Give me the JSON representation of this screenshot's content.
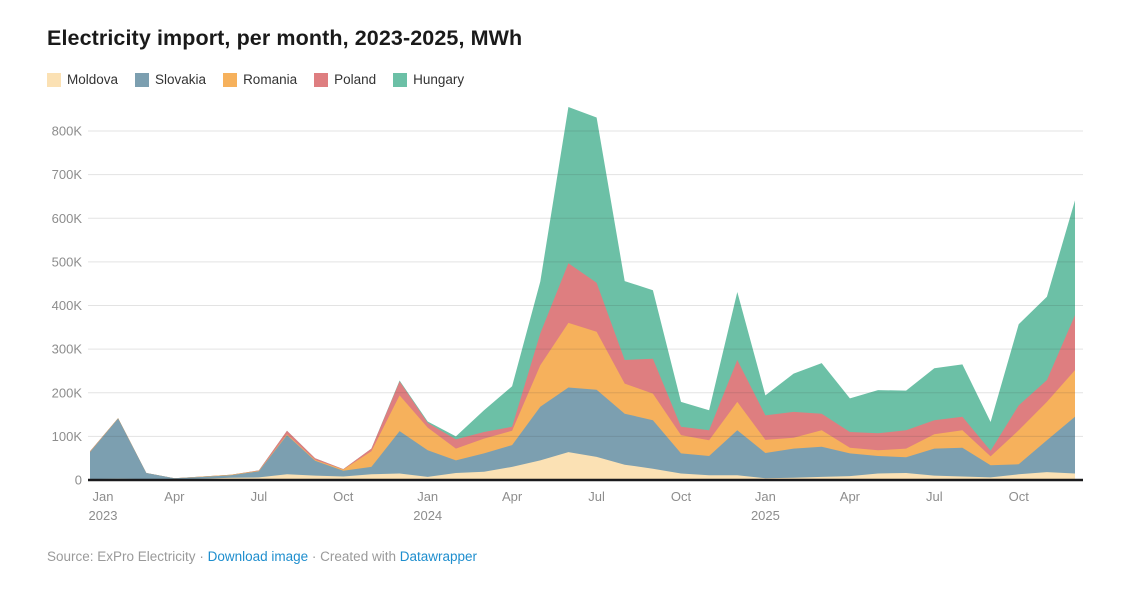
{
  "title": "Electricity import, per month, 2023-2025, MWh",
  "footer": {
    "source_prefix": "Source: ExPro Electricity",
    "separator": "·",
    "download_link": "Download image",
    "created_with": "Created with",
    "tool_link": "Datawrapper"
  },
  "chart_data": {
    "type": "area",
    "stacked": true,
    "unit": "MWh",
    "grid": true,
    "legend_position": "top-left",
    "ylim": [
      0,
      800000
    ],
    "months": [
      "Jan 2023",
      "Feb 2023",
      "Mar 2023",
      "Apr 2023",
      "May 2023",
      "Jun 2023",
      "Jul 2023",
      "Aug 2023",
      "Sep 2023",
      "Oct 2023",
      "Nov 2023",
      "Dec 2023",
      "Jan 2024",
      "Feb 2024",
      "Mar 2024",
      "Apr 2024",
      "May 2024",
      "Jun 2024",
      "Jul 2024",
      "Aug 2024",
      "Sep 2024",
      "Oct 2024",
      "Nov 2024",
      "Dec 2024",
      "Jan 2025",
      "Feb 2025",
      "Mar 2025",
      "Apr 2025",
      "May 2025",
      "Jun 2025",
      "Jul 2025",
      "Aug 2025",
      "Sep 2025",
      "Oct 2025",
      "Nov 2025",
      "Dec 2025"
    ],
    "series": [
      {
        "name": "Moldova",
        "color": "#fbe1b4",
        "values": [
          2000,
          3000,
          2000,
          1000,
          3000,
          5000,
          6000,
          13000,
          10000,
          8000,
          13000,
          15000,
          7000,
          16000,
          19000,
          30000,
          45000,
          64000,
          53000,
          35000,
          26000,
          15000,
          11000,
          11000,
          4000,
          5000,
          7000,
          9000,
          15000,
          16000,
          10000,
          8000,
          6000,
          13000,
          18000,
          15000
        ]
      },
      {
        "name": "Slovakia",
        "color": "#7c9fb0",
        "values": [
          62000,
          138000,
          14000,
          3000,
          4000,
          6000,
          14000,
          90000,
          34000,
          13000,
          17000,
          97000,
          61000,
          29000,
          42000,
          50000,
          123000,
          148000,
          154000,
          117000,
          111000,
          46000,
          44000,
          103000,
          58000,
          67000,
          69000,
          52000,
          40000,
          36000,
          62000,
          66000,
          28000,
          23000,
          73000,
          130000
        ]
      },
      {
        "name": "Romania",
        "color": "#f6b15c",
        "values": [
          1000,
          1000,
          0,
          0,
          1000,
          1000,
          1000,
          2000,
          2000,
          3000,
          36000,
          82000,
          52000,
          27000,
          34000,
          33000,
          95000,
          148000,
          133000,
          69000,
          61000,
          42000,
          36000,
          65000,
          30000,
          25000,
          38000,
          13000,
          13000,
          20000,
          33000,
          40000,
          20000,
          78000,
          88000,
          107000
        ]
      },
      {
        "name": "Poland",
        "color": "#de7e80",
        "values": [
          1000,
          0,
          0,
          0,
          0,
          0,
          1000,
          8000,
          4000,
          1000,
          6000,
          32000,
          11000,
          21000,
          15000,
          9000,
          73000,
          137000,
          112000,
          54000,
          80000,
          19000,
          23000,
          96000,
          56000,
          59000,
          38000,
          36000,
          39000,
          42000,
          32000,
          31000,
          13000,
          57000,
          50000,
          126000
        ]
      },
      {
        "name": "Hungary",
        "color": "#6cc0a6",
        "values": [
          0,
          0,
          0,
          0,
          0,
          0,
          0,
          0,
          0,
          0,
          0,
          2000,
          3000,
          7000,
          50000,
          93000,
          119000,
          358000,
          379000,
          181000,
          157000,
          57000,
          46000,
          156000,
          46000,
          88000,
          116000,
          77000,
          99000,
          91000,
          119000,
          120000,
          66000,
          186000,
          191000,
          263000
        ]
      }
    ],
    "y_ticks": [
      {
        "v": 0,
        "label": "0"
      },
      {
        "v": 100000,
        "label": "100K"
      },
      {
        "v": 200000,
        "label": "200K"
      },
      {
        "v": 300000,
        "label": "300K"
      },
      {
        "v": 400000,
        "label": "400K"
      },
      {
        "v": 500000,
        "label": "500K"
      },
      {
        "v": 600000,
        "label": "600K"
      },
      {
        "v": 700000,
        "label": "700K"
      },
      {
        "v": 800000,
        "label": "800K"
      }
    ],
    "x_ticks": [
      {
        "i": 0,
        "label": "Jan",
        "year": "2023"
      },
      {
        "i": 3,
        "label": "Apr"
      },
      {
        "i": 6,
        "label": "Jul"
      },
      {
        "i": 9,
        "label": "Oct"
      },
      {
        "i": 12,
        "label": "Jan",
        "year": "2024"
      },
      {
        "i": 15,
        "label": "Apr"
      },
      {
        "i": 18,
        "label": "Jul"
      },
      {
        "i": 21,
        "label": "Oct"
      },
      {
        "i": 24,
        "label": "Jan",
        "year": "2025"
      },
      {
        "i": 27,
        "label": "Apr"
      },
      {
        "i": 30,
        "label": "Jul"
      },
      {
        "i": 33,
        "label": "Oct"
      }
    ]
  }
}
